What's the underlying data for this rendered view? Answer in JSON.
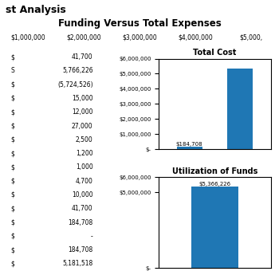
{
  "title": "Funding Versus Total Expenses",
  "subtitle": "st Analysis",
  "annotations": [
    "$1,000,000",
    "$2,000,000",
    "$3,000,000",
    "$4,000,000",
    "$5,000,"
  ],
  "chart_data": [
    {
      "type": "table",
      "rows": [
        [
          "$",
          "41,700"
        ],
        [
          "S",
          "5,766,226"
        ],
        [
          "$",
          "(5,724,526)"
        ],
        [
          "$",
          "15,000"
        ],
        [
          "$",
          "12,000"
        ],
        [
          "$",
          "27,000"
        ],
        [
          "$",
          "2,500"
        ],
        [
          "$",
          "1,200"
        ],
        [
          "$",
          "1,000"
        ],
        [
          "$",
          "4,700"
        ],
        [
          "$",
          "10,000"
        ],
        [
          "$",
          "41,700"
        ],
        [
          "$",
          "184,708"
        ],
        [
          "$",
          "-"
        ],
        [
          "$",
          "184,708"
        ],
        [
          "$",
          "5,181,518"
        ]
      ]
    },
    {
      "type": "bar",
      "title": "Total Cost",
      "categories": [
        null,
        null
      ],
      "values": [
        184708,
        5366226
      ],
      "value_labels": [
        "$184,708",
        null
      ],
      "data_labels": true,
      "ylim": [
        0,
        6000000
      ],
      "yticks": [
        {
          "value": 0,
          "label": "$-"
        },
        {
          "value": 1000000,
          "label": "$1,000,000"
        },
        {
          "value": 2000000,
          "label": "$2,000,000"
        },
        {
          "value": 3000000,
          "label": "$3,000,000"
        },
        {
          "value": 4000000,
          "label": "$4,000,000"
        },
        {
          "value": 5000000,
          "label": "$5,000,000"
        },
        {
          "value": 6000000,
          "label": "$6,000,000"
        }
      ],
      "tick_labels": "y",
      "grid": false
    },
    {
      "type": "bar",
      "title": "Utilization of Funds",
      "categories": [
        null
      ],
      "values": [
        5366226
      ],
      "value_labels": [
        "$5,366,226"
      ],
      "data_labels": true,
      "ylim": [
        0,
        6000000
      ],
      "yticks": [
        {
          "value": 0,
          "label": "$-"
        },
        {
          "value": 5000000,
          "label": "$5,000,000"
        },
        {
          "value": 6000000,
          "label": "$6,000,000"
        }
      ],
      "tick_labels": "y",
      "grid": false
    }
  ]
}
